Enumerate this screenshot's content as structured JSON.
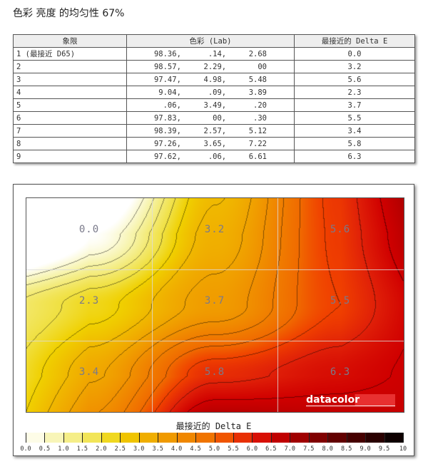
{
  "title": "色彩 亮度 的均匀性 67%",
  "table": {
    "headers": [
      "象限",
      "色彩 (Lab)",
      "最接近的 Delta E"
    ],
    "rows": [
      [
        "1 (最接近 D65)",
        "98.36,      .14,     2.68",
        "0.0"
      ],
      [
        "2",
        "98.57,     2.29,       00",
        "3.2"
      ],
      [
        "3",
        "97.47,     4.98,     5.48",
        "5.6"
      ],
      [
        "4",
        " 9.04,      .09,     3.89",
        "2.3"
      ],
      [
        "5",
        "  .06,     3.49,      .20",
        "3.7"
      ],
      [
        "6",
        "97.83,       00,      .30",
        "5.5"
      ],
      [
        "7",
        "98.39,     2.57,     5.12",
        "3.4"
      ],
      [
        "8",
        "97.26,     3.65,     7.22",
        "5.8"
      ],
      [
        "9",
        "97.62,      .06,     6.61",
        "6.3"
      ]
    ]
  },
  "chart_data": {
    "type": "heatmap",
    "grid": [
      [
        0.0,
        3.2,
        5.6
      ],
      [
        2.3,
        3.7,
        5.5
      ],
      [
        3.4,
        5.8,
        6.3
      ]
    ],
    "labels": [
      "0.0",
      "3.2",
      "5.6",
      "2.3",
      "3.7",
      "5.5",
      "3.4",
      "5.8",
      "6.3"
    ],
    "legend_title": "最接近的 Delta E",
    "scale_ticks": [
      "0.0",
      "0.5",
      "1.0",
      "1.5",
      "2.0",
      "2.5",
      "3.0",
      "3.5",
      "4.0",
      "4.5",
      "5.0",
      "5.5",
      "6.0",
      "6.5",
      "7.0",
      "7.5",
      "8.0",
      "8.5",
      "9.0",
      "9.5",
      "10"
    ],
    "range": [
      0,
      10
    ],
    "colorscale": [
      [
        0,
        "#ffffff"
      ],
      [
        1,
        "#f6f2a0"
      ],
      [
        2,
        "#f0e040"
      ],
      [
        2.5,
        "#f0d000"
      ],
      [
        3,
        "#f0b800"
      ],
      [
        4,
        "#f09000"
      ],
      [
        5,
        "#f06a00"
      ],
      [
        5.5,
        "#f04000"
      ],
      [
        6,
        "#e02008"
      ],
      [
        6.5,
        "#d00000"
      ],
      [
        7,
        "#b00000"
      ],
      [
        8,
        "#700000"
      ],
      [
        10,
        "#000000"
      ]
    ]
  },
  "logo": "datacolor"
}
